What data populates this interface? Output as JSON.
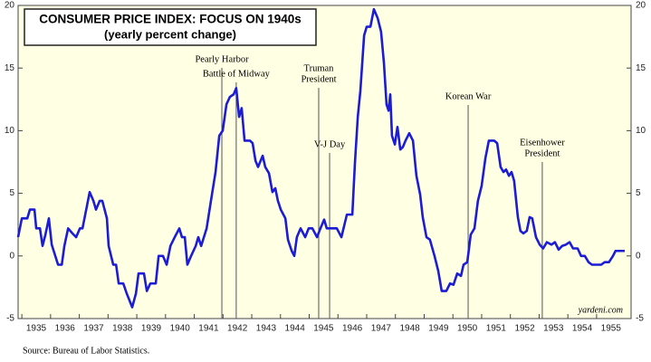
{
  "chart_data": {
    "type": "line",
    "title": "CONSUMER PRICE INDEX: FOCUS ON 1940s",
    "subtitle": "(yearly percent change)",
    "source": "Source: Bureau of Labor Statistics.",
    "watermark": "yardeni.com",
    "xlim": [
      1934.87,
      1956.2
    ],
    "ylim": [
      -5,
      20
    ],
    "yticks": [
      -5,
      0,
      5,
      10,
      15,
      20
    ],
    "xticks": [
      1935,
      1936,
      1937,
      1938,
      1939,
      1940,
      1941,
      1942,
      1943,
      1944,
      1945,
      1946,
      1947,
      1948,
      1949,
      1950,
      1951,
      1952,
      1953,
      1954,
      1955
    ],
    "grid": false,
    "x": [
      1934.87,
      1935.0,
      1935.19,
      1935.28,
      1935.44,
      1935.5,
      1935.63,
      1935.72,
      1935.82,
      1935.94,
      1936.04,
      1936.26,
      1936.39,
      1936.48,
      1936.61,
      1936.76,
      1936.89,
      1937.02,
      1937.11,
      1937.24,
      1937.36,
      1937.49,
      1937.58,
      1937.71,
      1937.8,
      1937.96,
      1938.02,
      1938.18,
      1938.28,
      1938.37,
      1938.53,
      1938.65,
      1938.84,
      1938.97,
      1939.06,
      1939.25,
      1939.35,
      1939.47,
      1939.66,
      1939.76,
      1939.91,
      1940.04,
      1940.17,
      1940.32,
      1940.48,
      1940.57,
      1940.67,
      1940.76,
      1940.89,
      1941.05,
      1941.14,
      1941.24,
      1941.43,
      1941.58,
      1941.74,
      1941.87,
      1941.99,
      1942.12,
      1942.24,
      1942.37,
      1942.46,
      1942.56,
      1942.65,
      1942.75,
      1942.94,
      1943.03,
      1943.13,
      1943.22,
      1943.38,
      1943.47,
      1943.6,
      1943.72,
      1943.82,
      1943.91,
      1944.01,
      1944.17,
      1944.26,
      1944.39,
      1944.48,
      1944.57,
      1944.7,
      1944.86,
      1944.98,
      1945.11,
      1945.27,
      1945.39,
      1945.52,
      1945.61,
      1945.74,
      1945.96,
      1946.12,
      1946.31,
      1946.5,
      1946.59,
      1946.69,
      1946.78,
      1946.91,
      1947.0,
      1947.13,
      1947.25,
      1947.38,
      1947.5,
      1947.6,
      1947.69,
      1947.76,
      1947.82,
      1947.88,
      1947.98,
      1948.07,
      1948.17,
      1948.26,
      1948.35,
      1948.48,
      1948.61,
      1948.73,
      1948.86,
      1948.95,
      1949.08,
      1949.2,
      1949.36,
      1949.49,
      1949.61,
      1949.77,
      1949.9,
      1950.02,
      1950.15,
      1950.28,
      1950.37,
      1950.5,
      1950.62,
      1950.75,
      1950.87,
      1951.0,
      1951.13,
      1951.25,
      1951.44,
      1951.54,
      1951.66,
      1951.76,
      1951.85,
      1951.95,
      1952.04,
      1952.13,
      1952.26,
      1952.35,
      1952.45,
      1952.57,
      1952.67,
      1952.76,
      1952.89,
      1953.02,
      1953.14,
      1953.27,
      1953.43,
      1953.55,
      1953.68,
      1953.8,
      1953.93,
      1954.06,
      1954.18,
      1954.34,
      1954.46,
      1954.59,
      1954.72,
      1954.84,
      1955.0,
      1955.16,
      1955.28,
      1955.43,
      1955.57,
      1955.66,
      1955.98
    ],
    "series": [
      {
        "color": "#1c1cd6",
        "values": [
          1.5,
          3.0,
          3.0,
          3.7,
          3.7,
          2.2,
          2.2,
          0.8,
          1.7,
          3.0,
          0.9,
          -0.7,
          -0.7,
          0.8,
          2.2,
          1.8,
          1.5,
          2.2,
          2.2,
          3.7,
          5.1,
          4.4,
          3.7,
          4.4,
          4.4,
          3.0,
          0.8,
          -0.7,
          -0.7,
          -2.2,
          -2.2,
          -3.0,
          -4.1,
          -3.0,
          -1.4,
          -1.4,
          -2.8,
          -2.2,
          -2.2,
          0,
          0,
          -0.7,
          0.8,
          1.5,
          2.2,
          1.5,
          1.5,
          -0.7,
          0,
          0.8,
          1.5,
          0.8,
          2.2,
          4.4,
          6.7,
          9.6,
          10.0,
          12.1,
          12.7,
          12.9,
          13.4,
          11.1,
          11.8,
          9.2,
          9.2,
          9.0,
          7.6,
          7.1,
          8.0,
          7.1,
          6.6,
          5.1,
          5.4,
          4.4,
          3.7,
          3.0,
          1.3,
          0.4,
          0,
          1.5,
          2.2,
          1.5,
          2.2,
          2.2,
          1.5,
          2.2,
          2.9,
          2.2,
          2.2,
          2.2,
          1.5,
          3.3,
          3.3,
          7.4,
          11.1,
          13.2,
          17.6,
          18.3,
          18.3,
          19.7,
          19.0,
          17.9,
          15.4,
          12.1,
          11.6,
          12.9,
          9.6,
          8.9,
          10.3,
          8.5,
          8.7,
          9.2,
          9.8,
          9.2,
          6.4,
          4.9,
          3.1,
          1.5,
          1.3,
          0,
          -1.2,
          -2.8,
          -2.8,
          -2.2,
          -2.3,
          -1.4,
          -1.6,
          -0.7,
          -0.5,
          1.7,
          2.2,
          4.4,
          5.6,
          7.8,
          9.2,
          9.2,
          9.0,
          7.1,
          6.7,
          6.9,
          6.4,
          6.7,
          6.0,
          3.1,
          2.0,
          1.8,
          2.0,
          3.1,
          3.0,
          1.5,
          0.9,
          0.6,
          1.1,
          0.9,
          1.1,
          0.5,
          0.8,
          0.9,
          1.1,
          0.6,
          0.6,
          0,
          0,
          -0.5,
          -0.7,
          -0.7,
          -0.7,
          -0.5,
          -0.5,
          0,
          0.4,
          0.4
        ]
      }
    ],
    "annotations": [
      {
        "lines": [
          "Pearly Harbor"
        ],
        "x": 1941.96
      },
      {
        "lines": [
          "Battle of Midway"
        ],
        "x": 1942.46
      },
      {
        "lines": [
          "Truman",
          "President"
        ],
        "x": 1945.33
      },
      {
        "lines": [
          "V-J Day"
        ],
        "x": 1945.71
      },
      {
        "lines": [
          "Korean War"
        ],
        "x": 1950.53
      },
      {
        "lines": [
          "Eisenhower",
          "President"
        ],
        "x": 1953.11
      }
    ]
  }
}
